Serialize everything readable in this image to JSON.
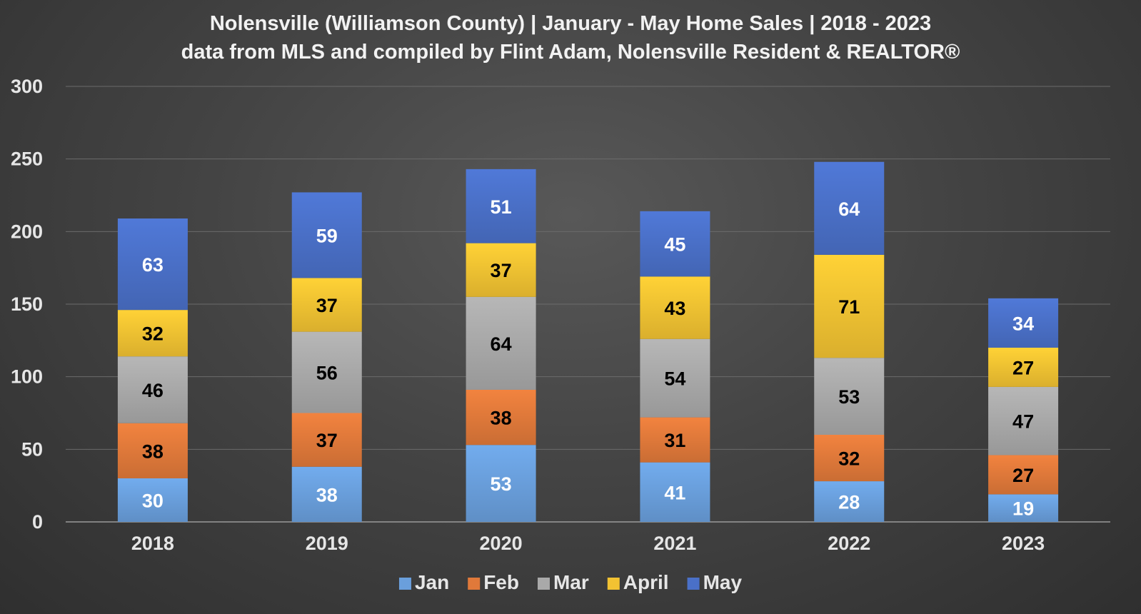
{
  "chart_data": {
    "type": "bar",
    "stacked": true,
    "title": "Nolensville (Williamson County) | January - May Home Sales | 2018 - 2023",
    "subtitle": "data from MLS and compiled by Flint Adam, Nolensville Resident & REALTOR®",
    "categories": [
      "2018",
      "2019",
      "2020",
      "2021",
      "2022",
      "2023"
    ],
    "series": [
      {
        "name": "Jan",
        "values": [
          30,
          38,
          53,
          41,
          28,
          19
        ],
        "color": "#6a9fdc",
        "label_color": "#ffffff"
      },
      {
        "name": "Feb",
        "values": [
          38,
          37,
          38,
          31,
          32,
          27
        ],
        "color": "#e0793a",
        "label_color": "#000000"
      },
      {
        "name": "Mar",
        "values": [
          46,
          56,
          64,
          54,
          53,
          47
        ],
        "color": "#a9a9a9",
        "label_color": "#000000"
      },
      {
        "name": "April",
        "values": [
          32,
          37,
          37,
          43,
          71,
          27
        ],
        "color": "#f2c232",
        "label_color": "#000000"
      },
      {
        "name": "May",
        "values": [
          63,
          59,
          51,
          45,
          64,
          34
        ],
        "color": "#4a70c8",
        "label_color": "#ffffff"
      }
    ],
    "ylim": [
      0,
      300
    ],
    "yticks": [
      0,
      50,
      100,
      150,
      200,
      250,
      300
    ],
    "xlabel": "",
    "ylabel": "",
    "grid": true,
    "legend": "bottom",
    "colors": {
      "grid": "#6b6b6b",
      "axis": "#9a9a9a"
    }
  }
}
